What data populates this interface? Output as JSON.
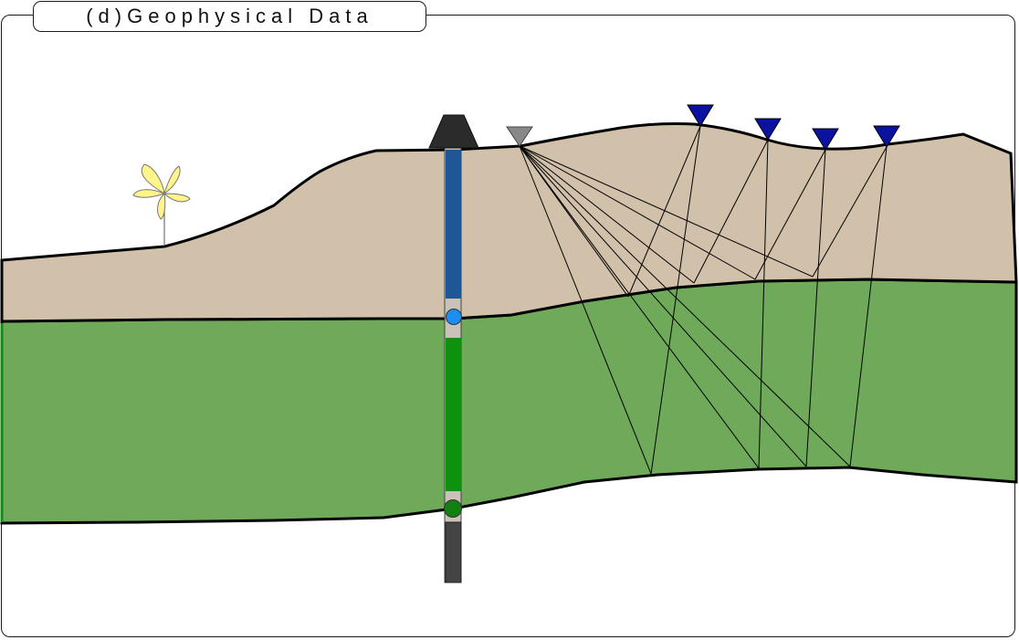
{
  "title": "(d)Geophysical Data",
  "colors": {
    "upper_layer": "#D1C0AA",
    "lower_layer": "#6FA95A",
    "casing_upper": "#1F5696",
    "casing_lower": "#10900F",
    "casing_bottom": "#444444",
    "marker_upper": "#1E8DF0",
    "marker_lower": "#10800F",
    "source": "#888888",
    "receiver": "#0B12A0",
    "rig": "#2B2B2B",
    "tree": "#FFF58A"
  },
  "icons": {
    "rig": "drill-rig-icon",
    "source": "seismic-source-icon",
    "receiver": "geophone-icon",
    "tree": "wind-turbine-icon"
  }
}
